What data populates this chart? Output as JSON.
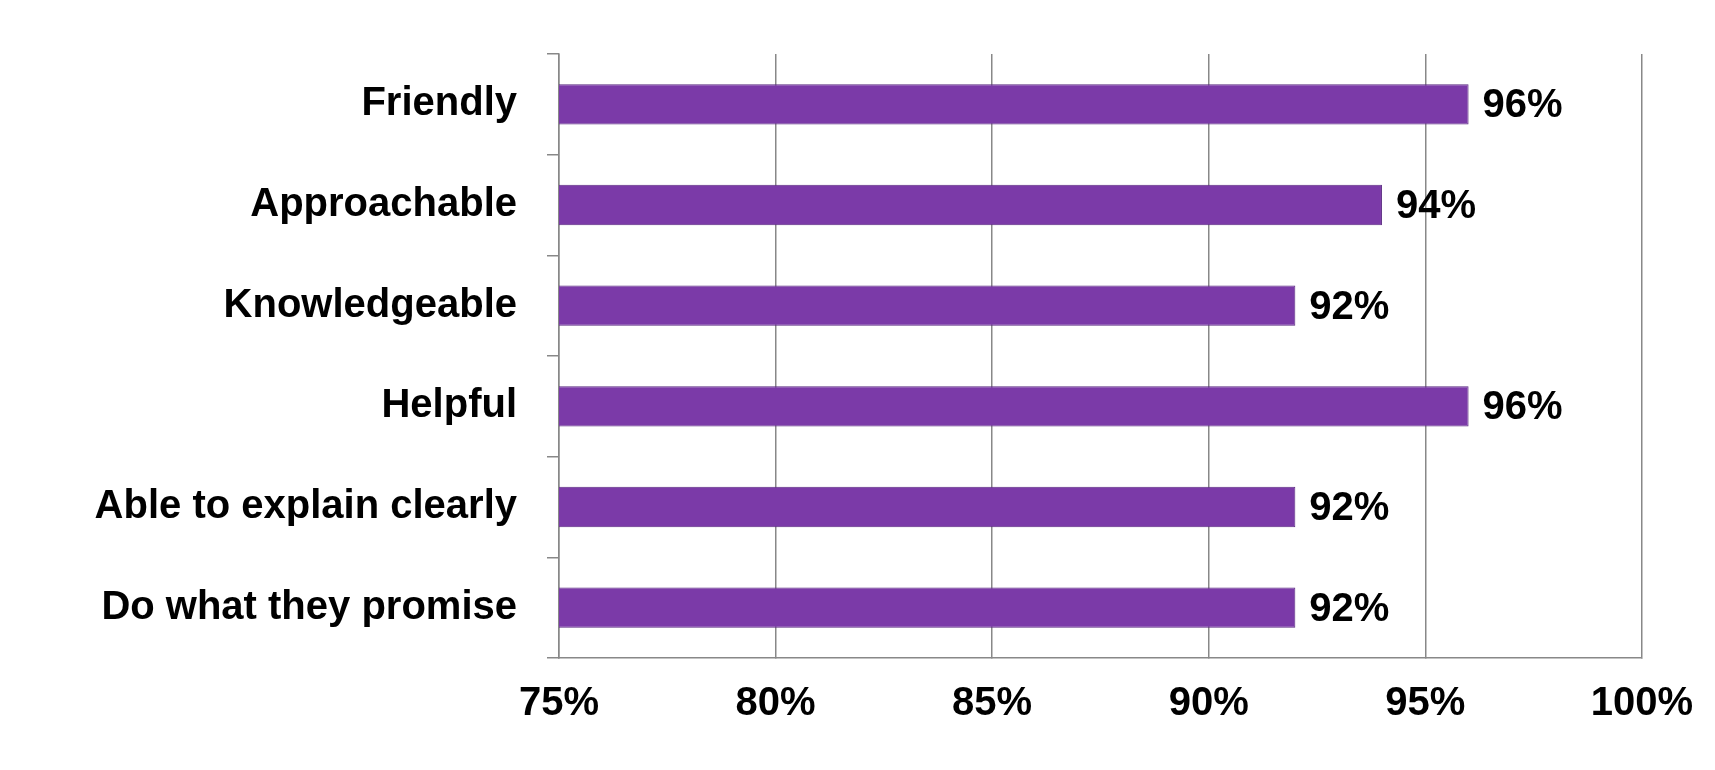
{
  "chart_data": {
    "type": "bar",
    "orientation": "horizontal",
    "categories": [
      "Friendly",
      "Approachable",
      "Knowledgeable",
      "Helpful",
      "Able to explain clearly",
      "Do what they promise"
    ],
    "values": [
      96,
      94,
      92,
      96,
      92,
      92
    ],
    "value_labels": [
      "96%",
      "94%",
      "92%",
      "96%",
      "92%",
      "92%"
    ],
    "color": "#7b3aa8",
    "xlim": [
      75,
      100
    ],
    "xticks": [
      {
        "value": 75,
        "label": "75%"
      },
      {
        "value": 80,
        "label": "80%"
      },
      {
        "value": 85,
        "label": "85%"
      },
      {
        "value": 90,
        "label": "90%"
      },
      {
        "value": 95,
        "label": "95%"
      },
      {
        "value": 100,
        "label": "100%"
      }
    ],
    "grid": "x",
    "legend": false
  }
}
